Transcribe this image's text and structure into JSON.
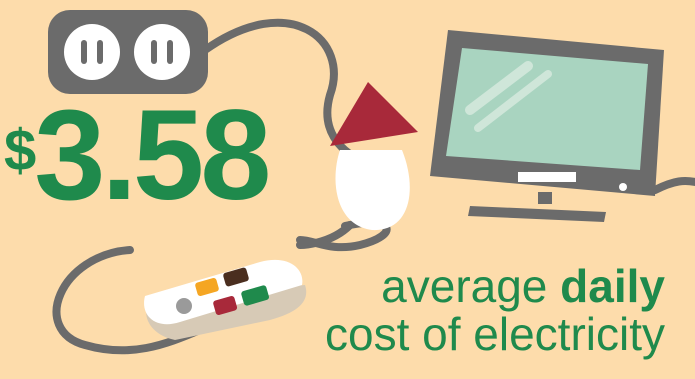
{
  "headline": {
    "currency_symbol": "$",
    "amount": "3.58",
    "caption_word1": "average",
    "caption_emphasis": "daily",
    "caption_line2": "cost of electricity"
  },
  "illustration": {
    "icons": [
      "power-strip-icon",
      "lamp-icon",
      "television-icon",
      "remote-control-icon",
      "power-cord-icon"
    ]
  },
  "colors": {
    "background": "#fddcab",
    "accent_green": "#1f8a4c",
    "device_gray": "#6b6b6b",
    "lamp_shade": "#a8293a",
    "screen": "#a9d4c0"
  }
}
